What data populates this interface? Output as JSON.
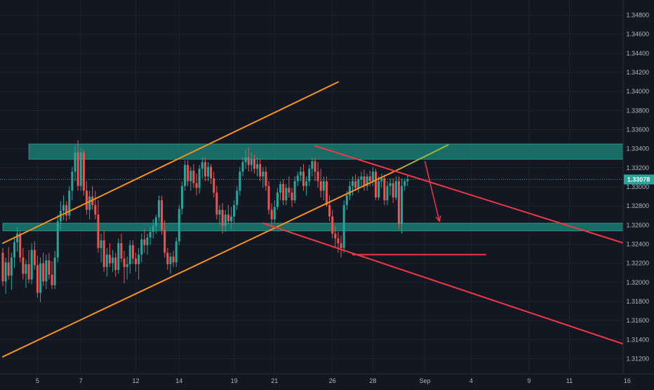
{
  "chart_data": {
    "type": "candlestick",
    "title": "",
    "theme": {
      "background": "#131722",
      "grid": "#1e222d",
      "axis_text": "#b2b5be",
      "up": "#26a69a",
      "down": "#ef5350",
      "orange": "#f7931a",
      "red_line": "#f23645",
      "zone_fill": "#1c8a7c",
      "price_tag": "#26a69a"
    },
    "y_axis": {
      "min": 1.311,
      "max": 1.349,
      "ticks": [
        "1.34800",
        "1.34600",
        "1.34400",
        "1.34200",
        "1.34000",
        "1.33800",
        "1.33600",
        "1.33400",
        "1.33200",
        "1.33000",
        "1.32800",
        "1.32600",
        "1.32400",
        "1.32200",
        "1.32000",
        "1.31800",
        "1.31600",
        "1.31400",
        "1.31200"
      ],
      "tick_values": [
        1.348,
        1.346,
        1.344,
        1.342,
        1.34,
        1.338,
        1.336,
        1.334,
        1.332,
        1.33,
        1.328,
        1.326,
        1.324,
        1.322,
        1.32,
        1.318,
        1.316,
        1.314,
        1.312
      ]
    },
    "x_axis": {
      "labels": [
        {
          "text": "5",
          "idx": 12
        },
        {
          "text": "7",
          "idx": 27
        },
        {
          "text": "12",
          "idx": 46
        },
        {
          "text": "14",
          "idx": 61
        },
        {
          "text": "19",
          "idx": 80
        },
        {
          "text": "21",
          "idx": 94
        },
        {
          "text": "26",
          "idx": 114
        },
        {
          "text": "28",
          "idx": 128
        },
        {
          "text": "Sep",
          "idx": 146
        },
        {
          "text": "4",
          "idx": 162
        },
        {
          "text": "9",
          "idx": 182
        },
        {
          "text": "11",
          "idx": 196
        },
        {
          "text": "16",
          "idx": 216
        }
      ]
    },
    "current_price": "1.33078",
    "current_value": 1.33078,
    "zones": [
      {
        "from_idx": 9,
        "to_idx": 218,
        "low": 1.3329,
        "high": 1.3345
      },
      {
        "from_idx": 0,
        "to_idx": 218,
        "low": 1.3254,
        "high": 1.3262
      }
    ],
    "lines": [
      {
        "color": "orange",
        "from": {
          "idx": 0,
          "v": 1.3122
        },
        "to": {
          "idx": 138,
          "v": 1.332
        }
      },
      {
        "color": "orange",
        "from": {
          "idx": 0,
          "v": 1.3241
        },
        "to": {
          "idx": 116,
          "v": 1.341
        }
      },
      {
        "color": "olive",
        "from": {
          "idx": 138,
          "v": 1.332
        },
        "to": {
          "idx": 154,
          "v": 1.3344
        }
      },
      {
        "color": "red",
        "from": {
          "idx": 108,
          "v": 1.3343
        },
        "to": {
          "idx": 217,
          "v": 1.3239
        }
      },
      {
        "color": "red",
        "from": {
          "idx": 90,
          "v": 1.3262
        },
        "to": {
          "idx": 217,
          "v": 1.3133
        }
      },
      {
        "color": "red",
        "from": {
          "idx": 121,
          "v": 1.3229
        },
        "to": {
          "idx": 167,
          "v": 1.3229
        }
      }
    ],
    "arrow": {
      "from": {
        "idx": 146,
        "v": 1.3327
      },
      "to": {
        "idx": 151,
        "v": 1.3264
      }
    },
    "candles": [
      [
        1.3231,
        1.3236,
        1.3196,
        1.3201
      ],
      [
        1.3201,
        1.3226,
        1.3188,
        1.3221
      ],
      [
        1.3221,
        1.3237,
        1.3203,
        1.3207
      ],
      [
        1.3207,
        1.3231,
        1.3192,
        1.3226
      ],
      [
        1.3226,
        1.3246,
        1.3215,
        1.3242
      ],
      [
        1.3242,
        1.3258,
        1.3232,
        1.3251
      ],
      [
        1.3251,
        1.3254,
        1.3221,
        1.3226
      ],
      [
        1.3226,
        1.3236,
        1.3203,
        1.3209
      ],
      [
        1.3209,
        1.3224,
        1.3194,
        1.3219
      ],
      [
        1.3219,
        1.3234,
        1.3199,
        1.3203
      ],
      [
        1.3203,
        1.3241,
        1.3198,
        1.3234
      ],
      [
        1.3234,
        1.3243,
        1.3213,
        1.3218
      ],
      [
        1.3218,
        1.3228,
        1.3184,
        1.3189
      ],
      [
        1.3189,
        1.3226,
        1.3179,
        1.322
      ],
      [
        1.322,
        1.3231,
        1.3196,
        1.3201
      ],
      [
        1.3201,
        1.3229,
        1.3193,
        1.3223
      ],
      [
        1.3223,
        1.3231,
        1.3203,
        1.3208
      ],
      [
        1.3208,
        1.3222,
        1.3193,
        1.3197
      ],
      [
        1.3197,
        1.3233,
        1.3193,
        1.3226
      ],
      [
        1.3226,
        1.3271,
        1.3221,
        1.3264
      ],
      [
        1.3264,
        1.3285,
        1.3255,
        1.3275
      ],
      [
        1.3275,
        1.3291,
        1.3265,
        1.3281
      ],
      [
        1.3281,
        1.3285,
        1.3264,
        1.327
      ],
      [
        1.327,
        1.3301,
        1.3266,
        1.3296
      ],
      [
        1.3296,
        1.3321,
        1.3286,
        1.3316
      ],
      [
        1.3316,
        1.3343,
        1.3306,
        1.3336
      ],
      [
        1.3336,
        1.3349,
        1.3296,
        1.3301
      ],
      [
        1.3301,
        1.3341,
        1.3296,
        1.3336
      ],
      [
        1.3336,
        1.3339,
        1.3291,
        1.3296
      ],
      [
        1.3296,
        1.3306,
        1.3271,
        1.3276
      ],
      [
        1.3276,
        1.3296,
        1.3266,
        1.329
      ],
      [
        1.329,
        1.3301,
        1.3276,
        1.3281
      ],
      [
        1.3281,
        1.3296,
        1.3266,
        1.3271
      ],
      [
        1.3271,
        1.3286,
        1.3231,
        1.3236
      ],
      [
        1.3236,
        1.3251,
        1.3221,
        1.3244
      ],
      [
        1.3244,
        1.3254,
        1.3211,
        1.3216
      ],
      [
        1.3216,
        1.3236,
        1.3206,
        1.3229
      ],
      [
        1.3229,
        1.3241,
        1.3216,
        1.322
      ],
      [
        1.322,
        1.3234,
        1.3211,
        1.3226
      ],
      [
        1.3226,
        1.3231,
        1.3206,
        1.3213
      ],
      [
        1.3213,
        1.3246,
        1.3209,
        1.3241
      ],
      [
        1.3241,
        1.3251,
        1.3221,
        1.3225
      ],
      [
        1.3225,
        1.3233,
        1.3199,
        1.3216
      ],
      [
        1.3216,
        1.3227,
        1.3203,
        1.3219
      ],
      [
        1.3219,
        1.3244,
        1.3209,
        1.3239
      ],
      [
        1.3239,
        1.3244,
        1.3219,
        1.3225
      ],
      [
        1.3225,
        1.3231,
        1.3211,
        1.3219
      ],
      [
        1.3219,
        1.3236,
        1.3203,
        1.3229
      ],
      [
        1.3229,
        1.3251,
        1.3221,
        1.3245
      ],
      [
        1.3245,
        1.3256,
        1.3231,
        1.3239
      ],
      [
        1.3239,
        1.3251,
        1.3229,
        1.3247
      ],
      [
        1.3247,
        1.3258,
        1.3239,
        1.3253
      ],
      [
        1.3253,
        1.3266,
        1.3246,
        1.3259
      ],
      [
        1.3259,
        1.3271,
        1.3251,
        1.3268
      ],
      [
        1.3268,
        1.3291,
        1.3263,
        1.3286
      ],
      [
        1.3286,
        1.3291,
        1.325,
        1.3255
      ],
      [
        1.3255,
        1.3265,
        1.3226,
        1.3231
      ],
      [
        1.3231,
        1.3236,
        1.3213,
        1.3219
      ],
      [
        1.3219,
        1.3231,
        1.3209,
        1.3227
      ],
      [
        1.3227,
        1.3233,
        1.3216,
        1.3221
      ],
      [
        1.3221,
        1.3247,
        1.3216,
        1.3243
      ],
      [
        1.3243,
        1.3281,
        1.3239,
        1.3277
      ],
      [
        1.3277,
        1.3306,
        1.3271,
        1.3301
      ],
      [
        1.3301,
        1.3328,
        1.3296,
        1.3323
      ],
      [
        1.3323,
        1.3328,
        1.3301,
        1.3306
      ],
      [
        1.3306,
        1.3321,
        1.3296,
        1.3317
      ],
      [
        1.3317,
        1.3324,
        1.3299,
        1.3304
      ],
      [
        1.3304,
        1.3314,
        1.3291,
        1.3299
      ],
      [
        1.3299,
        1.3323,
        1.3293,
        1.3319
      ],
      [
        1.3319,
        1.3331,
        1.3309,
        1.3326
      ],
      [
        1.3326,
        1.3331,
        1.3306,
        1.3311
      ],
      [
        1.3311,
        1.3326,
        1.3306,
        1.3321
      ],
      [
        1.3321,
        1.3324,
        1.3303,
        1.3309
      ],
      [
        1.3309,
        1.3316,
        1.3289,
        1.3294
      ],
      [
        1.3294,
        1.3301,
        1.3266,
        1.3271
      ],
      [
        1.3271,
        1.3281,
        1.3261,
        1.3276
      ],
      [
        1.3276,
        1.3283,
        1.3251,
        1.3259
      ],
      [
        1.3259,
        1.3276,
        1.3253,
        1.3271
      ],
      [
        1.3271,
        1.3281,
        1.3261,
        1.3264
      ],
      [
        1.3264,
        1.3279,
        1.3256,
        1.3269
      ],
      [
        1.3269,
        1.3286,
        1.3261,
        1.3281
      ],
      [
        1.3281,
        1.3301,
        1.3276,
        1.3296
      ],
      [
        1.3296,
        1.3321,
        1.3291,
        1.3316
      ],
      [
        1.3316,
        1.3331,
        1.3311,
        1.3326
      ],
      [
        1.3326,
        1.3339,
        1.3319,
        1.3331
      ],
      [
        1.3331,
        1.3341,
        1.3316,
        1.3323
      ],
      [
        1.3323,
        1.3336,
        1.3316,
        1.3329
      ],
      [
        1.3329,
        1.3334,
        1.3314,
        1.3319
      ],
      [
        1.3319,
        1.3331,
        1.3311,
        1.3324
      ],
      [
        1.3324,
        1.3329,
        1.3306,
        1.3311
      ],
      [
        1.3311,
        1.3321,
        1.3299,
        1.3316
      ],
      [
        1.3316,
        1.3321,
        1.3296,
        1.3301
      ],
      [
        1.3301,
        1.3306,
        1.3271,
        1.3276
      ],
      [
        1.3276,
        1.3283,
        1.3258,
        1.3266
      ],
      [
        1.3266,
        1.3286,
        1.3261,
        1.3279
      ],
      [
        1.3279,
        1.3299,
        1.3276,
        1.3294
      ],
      [
        1.3294,
        1.3306,
        1.3286,
        1.3303
      ],
      [
        1.3303,
        1.3308,
        1.3281,
        1.3286
      ],
      [
        1.3286,
        1.3303,
        1.3281,
        1.3299
      ],
      [
        1.3299,
        1.3311,
        1.3289,
        1.3294
      ],
      [
        1.3294,
        1.3299,
        1.3279,
        1.3286
      ],
      [
        1.3286,
        1.3311,
        1.3283,
        1.3306
      ],
      [
        1.3306,
        1.3316,
        1.3301,
        1.3312
      ],
      [
        1.3312,
        1.3321,
        1.3306,
        1.3316
      ],
      [
        1.3316,
        1.3324,
        1.3296,
        1.3301
      ],
      [
        1.3301,
        1.3311,
        1.3291,
        1.3306
      ],
      [
        1.3306,
        1.3323,
        1.3301,
        1.3319
      ],
      [
        1.3319,
        1.3331,
        1.3311,
        1.3327
      ],
      [
        1.3327,
        1.3331,
        1.3306,
        1.3316
      ],
      [
        1.3316,
        1.3326,
        1.3299,
        1.3306
      ],
      [
        1.3306,
        1.3319,
        1.3289,
        1.3296
      ],
      [
        1.3296,
        1.3311,
        1.3286,
        1.3306
      ],
      [
        1.3306,
        1.3311,
        1.3279,
        1.3281
      ],
      [
        1.3281,
        1.3291,
        1.3264,
        1.3269
      ],
      [
        1.3269,
        1.3276,
        1.3246,
        1.3251
      ],
      [
        1.3251,
        1.3259,
        1.3236,
        1.3246
      ],
      [
        1.3246,
        1.3253,
        1.3231,
        1.3241
      ],
      [
        1.3241,
        1.3249,
        1.3226,
        1.3236
      ],
      [
        1.3236,
        1.3286,
        1.3231,
        1.3281
      ],
      [
        1.3281,
        1.3296,
        1.3276,
        1.3291
      ],
      [
        1.3291,
        1.3306,
        1.3286,
        1.3301
      ],
      [
        1.3301,
        1.3311,
        1.3291,
        1.3306
      ],
      [
        1.3306,
        1.3313,
        1.3296,
        1.3299
      ],
      [
        1.3299,
        1.3311,
        1.3294,
        1.3308
      ],
      [
        1.3308,
        1.3316,
        1.3301,
        1.3311
      ],
      [
        1.3311,
        1.3318,
        1.3296,
        1.3301
      ],
      [
        1.3301,
        1.3314,
        1.3296,
        1.3311
      ],
      [
        1.3311,
        1.3317,
        1.3301,
        1.3306
      ],
      [
        1.3306,
        1.3321,
        1.3301,
        1.3316
      ],
      [
        1.3316,
        1.3319,
        1.3286,
        1.3289
      ],
      [
        1.3289,
        1.3311,
        1.3286,
        1.3306
      ],
      [
        1.3306,
        1.3314,
        1.3299,
        1.3309
      ],
      [
        1.3309,
        1.3313,
        1.3281,
        1.3286
      ],
      [
        1.3286,
        1.3306,
        1.3281,
        1.3301
      ],
      [
        1.3301,
        1.3309,
        1.3291,
        1.3304
      ],
      [
        1.3304,
        1.3309,
        1.3283,
        1.3289
      ],
      [
        1.3289,
        1.3311,
        1.3286,
        1.3306
      ],
      [
        1.3306,
        1.3311,
        1.3256,
        1.3261
      ],
      [
        1.3261,
        1.3309,
        1.3251,
        1.3301
      ],
      [
        1.3301,
        1.3309,
        1.3296,
        1.3306
      ],
      [
        1.3306,
        1.3313,
        1.3301,
        1.3308
      ]
    ]
  }
}
